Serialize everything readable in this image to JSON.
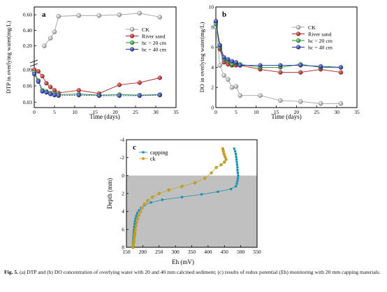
{
  "figure": {
    "caption_label": "Fig. 5.",
    "caption_text": " (a) DTP and (b) DO concentration of overlying water with 20 and 40 mm calcined sediment; (c) results of redox potential (Eh) monitoring with 20 mm capping materials."
  },
  "colors": {
    "ck": "#a3a3a3",
    "river_sand": "#b21e1e",
    "hc20": "#1d8f2a",
    "hc40": "#1b2fa0",
    "capping": "#1592b0",
    "c_ck": "#c9a622",
    "shade": "#c0c0c0"
  },
  "chart_data": [
    {
      "panel_label": "a",
      "type": "line",
      "title": "",
      "xlabel": "Time (days)",
      "ylabel": "DTP in overlying water(mg/L)",
      "xlim": [
        0,
        35
      ],
      "xticks": [
        "0",
        "5",
        "10",
        "15",
        "20",
        "25",
        "30",
        "35"
      ],
      "y_break": true,
      "ylim_lower": [
        0.02,
        0.1
      ],
      "yticks_lower": [
        "0.03",
        "0.06",
        "0.09"
      ],
      "ylim_upper": [
        0.0,
        0.7
      ],
      "yticks_upper": [
        "0.20",
        "0.40",
        "0.60"
      ],
      "legend_position": "upper-right",
      "series": [
        {
          "name": "CK",
          "x": [
            2.5,
            4,
            5,
            6,
            11,
            16,
            21,
            26,
            31
          ],
          "y": [
            0.2,
            0.3,
            0.38,
            0.58,
            0.59,
            0.59,
            0.6,
            0.62,
            0.57
          ],
          "axis": "upper"
        },
        {
          "name": "River sand",
          "x": [
            0,
            1,
            2,
            3,
            4,
            5,
            6,
            11,
            16,
            21,
            26,
            31
          ],
          "y": [
            0.09,
            0.087,
            0.078,
            0.065,
            0.058,
            0.052,
            0.047,
            0.052,
            0.046,
            0.062,
            0.066,
            0.075
          ],
          "axis": "lower"
        },
        {
          "name": "hc = 20 cm",
          "x": [
            0,
            1,
            2,
            3,
            4,
            5,
            6,
            11,
            16,
            21,
            26,
            31
          ],
          "y": [
            0.085,
            0.07,
            0.052,
            0.05,
            0.047,
            0.045,
            0.044,
            0.045,
            0.043,
            0.044,
            0.043,
            0.044
          ],
          "axis": "lower"
        },
        {
          "name": "hc = 40 cm",
          "x": [
            0,
            1,
            2,
            3,
            4,
            5,
            6,
            11,
            16,
            21,
            26,
            31
          ],
          "y": [
            0.082,
            0.068,
            0.05,
            0.048,
            0.045,
            0.043,
            0.042,
            0.043,
            0.042,
            0.042,
            0.042,
            0.043
          ],
          "axis": "lower"
        }
      ]
    },
    {
      "panel_label": "b",
      "type": "line",
      "title": "",
      "xlabel": "Time (days)",
      "ylabel": "DO in overlying water(mg/L)",
      "xlim": [
        0,
        35
      ],
      "ylim": [
        0,
        10
      ],
      "xticks": [
        "0",
        "5",
        "10",
        "15",
        "20",
        "25",
        "30",
        "35"
      ],
      "yticks": [
        "0",
        "2",
        "4",
        "6",
        "8",
        "10"
      ],
      "legend_position": "upper-right",
      "series": [
        {
          "name": "CK",
          "x": [
            0,
            1,
            2,
            3,
            4,
            5,
            6,
            11,
            16,
            21,
            26,
            31
          ],
          "y": [
            8.0,
            4.2,
            3.2,
            2.8,
            2.0,
            2.1,
            1.2,
            1.2,
            0.7,
            0.6,
            0.4,
            0.4
          ]
        },
        {
          "name": "River sand",
          "x": [
            0,
            1,
            2,
            3,
            4,
            5,
            6,
            11,
            16,
            21,
            26,
            31
          ],
          "y": [
            8.5,
            5.8,
            4.5,
            4.3,
            4.2,
            4.2,
            4.2,
            3.8,
            3.5,
            3.5,
            3.8,
            3.5
          ]
        },
        {
          "name": "hc = 20 cm",
          "x": [
            0,
            1,
            2,
            3,
            4,
            5,
            6,
            11,
            16,
            21,
            26,
            31
          ],
          "y": [
            8.3,
            6.0,
            4.8,
            4.6,
            4.3,
            4.4,
            4.3,
            4.0,
            4.0,
            4.3,
            4.0,
            4.0
          ]
        },
        {
          "name": "hc = 40 cm",
          "x": [
            0,
            1,
            2,
            3,
            4,
            5,
            6,
            11,
            16,
            21,
            26,
            31
          ],
          "y": [
            8.6,
            6.2,
            5.0,
            4.8,
            4.6,
            4.5,
            4.2,
            4.2,
            4.2,
            4.2,
            4.1,
            4.0
          ]
        }
      ]
    },
    {
      "panel_label": "c",
      "type": "scatter",
      "title": "",
      "xlabel": "Eh (mV)",
      "ylabel": "Depth (mm)",
      "xlim": [
        150,
        550
      ],
      "ylim": [
        -4,
        8
      ],
      "xticks": [
        "150",
        "200",
        "250",
        "300",
        "350",
        "400",
        "450",
        "500",
        "550"
      ],
      "yticks": [
        "-4",
        "-2",
        "0",
        "2",
        "4",
        "6",
        "8"
      ],
      "shaded_region": "depth > 0",
      "legend_position": "upper-left",
      "series": [
        {
          "name": "capping",
          "x": [
            480,
            483,
            485,
            486,
            487,
            488,
            489,
            490,
            490,
            491,
            492,
            491,
            490,
            488,
            485,
            470,
            430,
            380,
            320,
            260,
            225,
            205,
            195,
            188,
            183,
            180,
            178,
            176,
            175,
            174,
            173,
            172,
            172,
            171,
            171,
            170
          ],
          "y": [
            -3.0,
            -2.7,
            -2.4,
            -2.1,
            -1.8,
            -1.5,
            -1.2,
            -0.9,
            -0.6,
            -0.3,
            0.0,
            0.3,
            0.6,
            0.9,
            1.2,
            1.5,
            1.8,
            2.1,
            2.4,
            2.7,
            3.0,
            3.3,
            3.6,
            3.9,
            4.2,
            4.5,
            4.8,
            5.1,
            5.4,
            5.7,
            6.0,
            6.3,
            6.6,
            6.9,
            7.2,
            7.5
          ]
        },
        {
          "name": "ck",
          "x": [
            445,
            447,
            449,
            452,
            455,
            450,
            440,
            425,
            410,
            390,
            360,
            320,
            280,
            250,
            230,
            215,
            205,
            198,
            193,
            188,
            184,
            181,
            179,
            177,
            176,
            175,
            174,
            173,
            172,
            171,
            170,
            170
          ],
          "y": [
            -3.0,
            -2.7,
            -2.4,
            -2.1,
            -1.8,
            -1.5,
            -1.2,
            -0.9,
            -0.3,
            0.3,
            0.8,
            1.2,
            1.6,
            2.0,
            2.4,
            2.8,
            3.2,
            3.6,
            4.0,
            4.4,
            4.8,
            5.2,
            5.6,
            6.0,
            6.3,
            6.6,
            6.9,
            7.2,
            7.5,
            7.8,
            8.0,
            8.0
          ]
        }
      ]
    }
  ]
}
